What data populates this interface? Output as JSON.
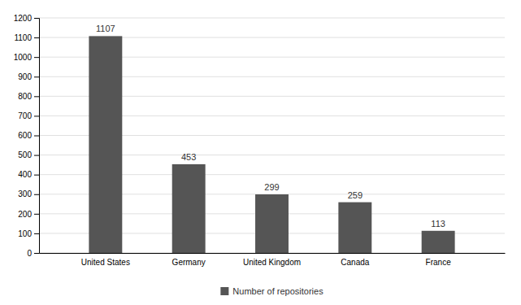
{
  "chart_data": {
    "type": "bar",
    "categories": [
      "United States",
      "Germany",
      "United Kingdom",
      "Canada",
      "France"
    ],
    "series": [
      {
        "name": "Number of repositories",
        "color": "#555555",
        "values": [
          1107,
          453,
          299,
          259,
          113
        ]
      }
    ],
    "ylim": [
      0,
      1200
    ],
    "yticks": [
      0,
      100,
      200,
      300,
      400,
      500,
      600,
      700,
      800,
      900,
      1000,
      1100,
      1200
    ],
    "grid": true,
    "legend": "bottom",
    "data_labels": true
  }
}
